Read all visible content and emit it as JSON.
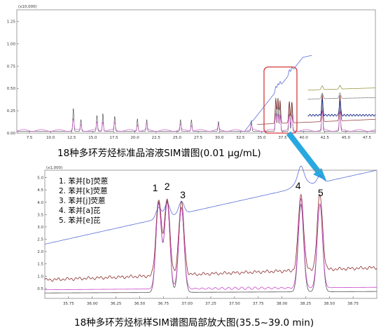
{
  "chart_data": [
    {
      "type": "line",
      "caption": "18种多环芳烃标准品溶液SIM谱图(0.01 μg/mL)",
      "y_scale_label": "(x10,000)",
      "xlim": [
        6.0,
        48.5
      ],
      "ylim": [
        0,
        1.38
      ],
      "x_ticks": [
        "7.5",
        "10.0",
        "12.5",
        "15.0",
        "17.5",
        "20.0",
        "22.5",
        "25.0",
        "27.5",
        "30.0",
        "32.5",
        "35.0",
        "37.5",
        "40.0",
        "42.5",
        "45.0",
        "47.5"
      ],
      "y_ticks": [
        "0.00",
        "0.25",
        "0.50",
        "0.75",
        "1.00",
        "1.25"
      ],
      "grid": false,
      "zoom_box_x_range": [
        35.3,
        39.2
      ],
      "peak_clusters": [
        {
          "x": 12.7,
          "height": 0.26
        },
        {
          "x": 13.6,
          "height": 0.13
        },
        {
          "x": 15.5,
          "height": 0.18
        },
        {
          "x": 16.2,
          "height": 0.2
        },
        {
          "x": 17.6,
          "height": 0.17
        },
        {
          "x": 20.3,
          "height": 0.14
        },
        {
          "x": 21.4,
          "height": 0.13
        },
        {
          "x": 25.4,
          "height": 0.13
        },
        {
          "x": 26.7,
          "height": 0.13
        },
        {
          "x": 29.9,
          "height": 0.11
        },
        {
          "x": 33.8,
          "height": 0.12
        },
        {
          "x": 36.7,
          "height": 0.38
        },
        {
          "x": 36.95,
          "height": 0.38
        },
        {
          "x": 37.2,
          "height": 0.35
        },
        {
          "x": 38.3,
          "height": 0.34
        },
        {
          "x": 38.6,
          "height": 0.33
        },
        {
          "x": 42.2,
          "height": 0.42
        },
        {
          "x": 44.3,
          "height": 0.41
        }
      ]
    },
    {
      "type": "line",
      "caption": "18种多环芳烃标样SIM谱图局部放大图(35.5~39.0 min)",
      "y_scale_label": "(x1,000)",
      "xlim": [
        35.5,
        39.0
      ],
      "ylim": [
        0.1,
        5.3
      ],
      "x_ticks": [
        "35.75",
        "36.00",
        "36.25",
        "36.50",
        "36.75",
        "37.00",
        "37.25",
        "37.50",
        "37.75",
        "38.00",
        "38.25",
        "38.50",
        "38.75"
      ],
      "y_ticks": [
        "0.5",
        "1.0",
        "1.5",
        "2.0",
        "2.5",
        "3.0",
        "3.5",
        "4.0",
        "4.5",
        "5.0"
      ],
      "grid": false,
      "peaks": [
        {
          "label": "1",
          "x": 36.7
        },
        {
          "label": "2",
          "x": 36.79
        },
        {
          "label": "3",
          "x": 36.94
        },
        {
          "label": "4",
          "x": 38.2
        },
        {
          "label": "5",
          "x": 38.4
        }
      ],
      "legend": [
        "1. 苯并[b]荧蒽",
        "2. 苯并[k]荧蒽",
        "3. 苯并[j]荧蒽",
        "4. 苯并[a]芘",
        "5. 苯并[e]芘"
      ],
      "series": [
        {
          "color": "#5a6fd6",
          "baseline_start": 2.3,
          "baseline_end": 5.3,
          "peak_heights": [
            0.45,
            0.55,
            0.5,
            0.5,
            0.3
          ]
        },
        {
          "color": "#8b2a2a",
          "baseline_start": 0.85,
          "baseline_end": 1.35,
          "peak_heights": [
            3.1,
            3.15,
            2.95,
            3.05,
            3.05
          ]
        },
        {
          "color": "#555555",
          "baseline_start": 0.32,
          "baseline_end": 0.38,
          "peak_heights": [
            3.65,
            3.7,
            3.45,
            3.55,
            3.55
          ]
        },
        {
          "color": "#cc44cc",
          "baseline_start": 0.45,
          "baseline_end": 0.55,
          "peak_heights": [
            3.45,
            3.5,
            3.3,
            3.6,
            3.4
          ]
        }
      ]
    }
  ],
  "colors": {
    "zoom_box": "#d23b3b",
    "arrow": "#28a8e0"
  }
}
